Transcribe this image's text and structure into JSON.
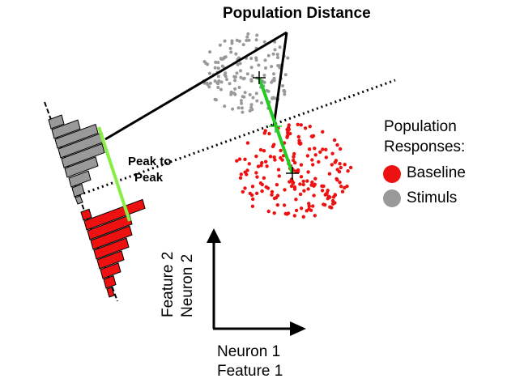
{
  "title": "Population Distance",
  "peak_label_line1": "Peak to",
  "peak_label_line2": "Peak",
  "legend": {
    "title_line1": "Population",
    "title_line2": "Responses:",
    "items": [
      {
        "label": "Baseline",
        "color": "#ee1111"
      },
      {
        "label": "Stimuls",
        "color": "#999999"
      }
    ]
  },
  "axes": {
    "x_label_line1": "Neuron 1",
    "x_label_line2": "Feature 1",
    "y_label_line1": "Feature 2",
    "y_label_line2": "Neuron 2"
  },
  "colors": {
    "baseline": "#ee1111",
    "stimulus": "#999999",
    "distance_line": "#22cc22",
    "peak_line": "#88ee44"
  }
}
